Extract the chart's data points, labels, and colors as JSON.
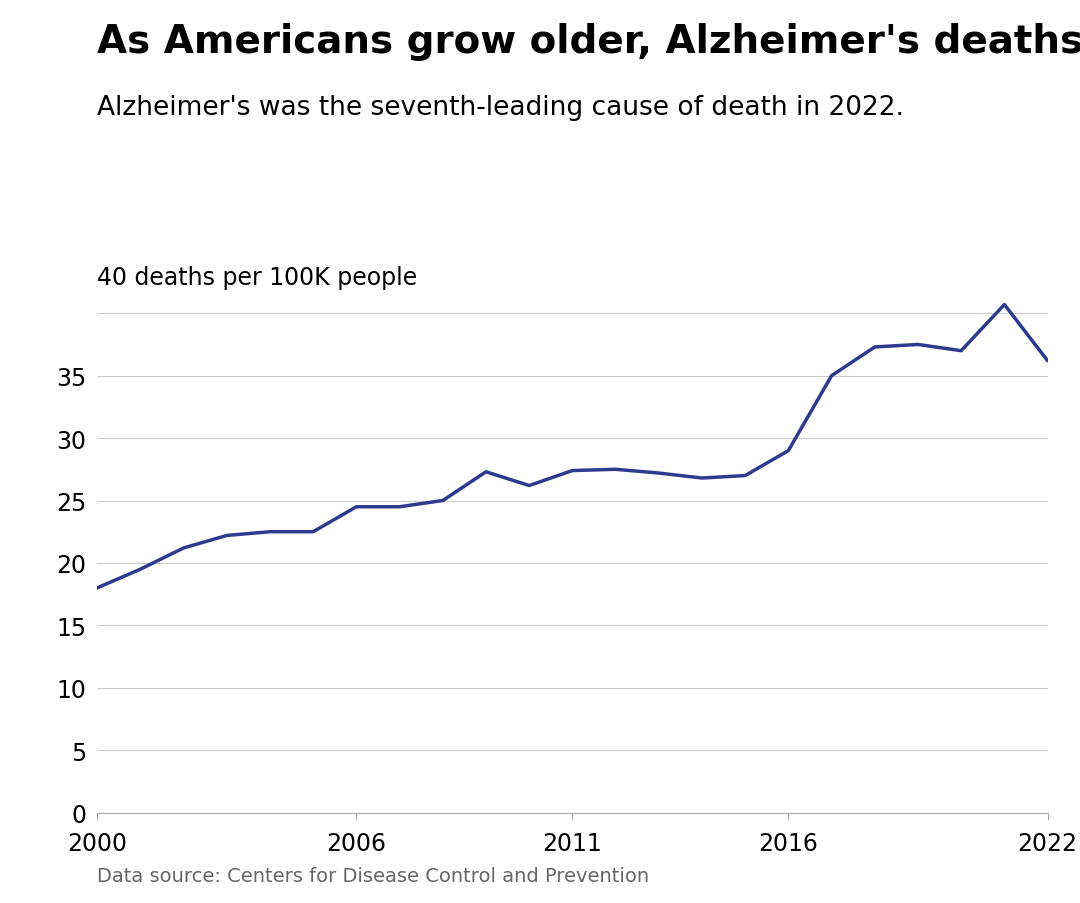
{
  "title": "As Americans grow older, Alzheimer's deaths rise",
  "subtitle": "Alzheimer's was the seventh-leading cause of death in 2022.",
  "ylabel_annotation": "40 deaths per 100K people",
  "source": "Data source: Centers for Disease Control and Prevention",
  "line_color": "#2d3b8e",
  "years": [
    2000,
    2001,
    2002,
    2003,
    2004,
    2005,
    2006,
    2007,
    2008,
    2009,
    2010,
    2011,
    2012,
    2013,
    2014,
    2015,
    2016,
    2017,
    2018,
    2019,
    2020,
    2021,
    2022
  ],
  "values": [
    18.0,
    19.5,
    21.2,
    22.2,
    22.5,
    22.5,
    24.5,
    24.5,
    25.0,
    27.3,
    26.2,
    27.4,
    27.5,
    27.2,
    26.8,
    27.0,
    29.0,
    35.0,
    37.3,
    37.5,
    37.0,
    40.7,
    36.2
  ],
  "xlim": [
    2000,
    2022
  ],
  "ylim": [
    0,
    42
  ],
  "xticks": [
    2000,
    2006,
    2011,
    2016,
    2022
  ],
  "yticks": [
    0,
    5,
    10,
    15,
    20,
    25,
    30,
    35,
    40
  ],
  "background_color": "#ffffff",
  "grid_color": "#cccccc",
  "title_fontsize": 28,
  "subtitle_fontsize": 19,
  "tick_fontsize": 17,
  "ylabel_fontsize": 17,
  "source_fontsize": 14,
  "line_width": 2.5
}
